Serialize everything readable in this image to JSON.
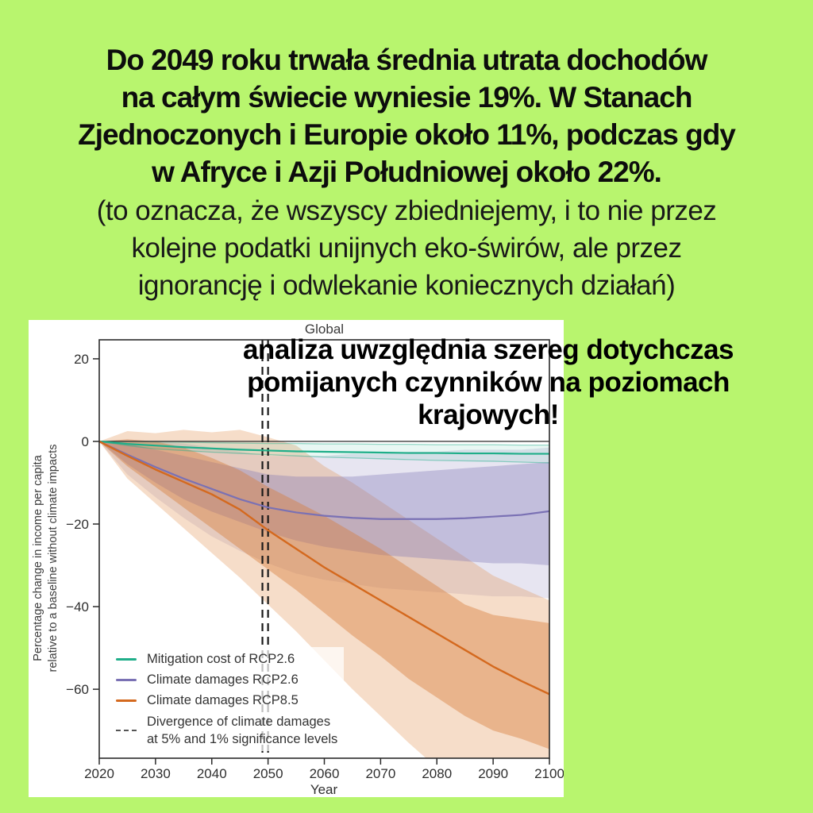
{
  "page": {
    "background_color": "#b8f56e",
    "text_color": "#0d0d0d"
  },
  "headline": {
    "lines": [
      "Do 2049 roku trwała średnia utrata dochodów",
      "na całym świecie wyniesie 19%. W Stanach",
      "Zjednoczonych i Europie około 11%, podczas gdy",
      "w Afryce i Azji Południowej około 22%."
    ]
  },
  "subtext": {
    "lines": [
      "(to oznacza, że wszyscy zbiedniejemy, i to nie przez",
      "kolejne podatki unijnych eko-świrów, ale przez",
      "ignorancję i odwlekanie koniecznych działań)"
    ]
  },
  "overlay": {
    "lines": [
      "analiza uwzględnia szereg dotychczas",
      "pomijanych czynników na poziomach",
      "krajowych!"
    ]
  },
  "chart": {
    "title": "Global",
    "ylabel_line1": "Percentage change in income per capita",
    "ylabel_line2": "relative to a baseline without climate impacts",
    "xlabel": "Year",
    "legend": [
      {
        "label": "Mitigation cost of RCP2.6"
      },
      {
        "label": "Climate damages RCP2.6"
      },
      {
        "label": "Climate damages RCP8.5"
      },
      {
        "label_line1": "Divergence of climate damages",
        "label_line2": "at 5% and 1% significance levels"
      }
    ]
  },
  "chart_data": {
    "type": "line",
    "title": "Global",
    "xlabel": "Year",
    "ylabel": "Percentage change in income per capita relative to a baseline without climate impacts",
    "grid": false,
    "legend_position": "lower left",
    "xlim": [
      2020,
      2100
    ],
    "ylim": [
      -76.7,
      24.6
    ],
    "x_ticks": [
      2020,
      2030,
      2040,
      2050,
      2060,
      2070,
      2080,
      2090,
      2100
    ],
    "y_ticks": [
      20,
      0,
      -20,
      -40,
      -60
    ],
    "x": [
      2020,
      2025,
      2030,
      2035,
      2040,
      2045,
      2050,
      2055,
      2060,
      2065,
      2070,
      2075,
      2080,
      2085,
      2090,
      2095,
      2100
    ],
    "series": [
      {
        "name": "Mitigation cost of RCP2.6",
        "color": "#1fae89",
        "width": 2.2,
        "values": [
          0,
          -0.6,
          -1.0,
          -1.4,
          -1.7,
          -2.0,
          -2.2,
          -2.4,
          -2.5,
          -2.6,
          -2.7,
          -2.8,
          -2.8,
          -2.9,
          -2.9,
          -3.0,
          -3.0
        ]
      },
      {
        "name": "Climate damages RCP2.6",
        "color": "#7a71b4",
        "width": 2.2,
        "values": [
          0,
          -3.2,
          -6.2,
          -9.0,
          -11.5,
          -14.0,
          -16.0,
          -17.2,
          -18.0,
          -18.5,
          -18.8,
          -18.8,
          -18.8,
          -18.6,
          -18.2,
          -17.8,
          -16.9
        ]
      },
      {
        "name": "Climate damages RCP8.5",
        "color": "#d4691e",
        "width": 2.4,
        "values": [
          0,
          -3.5,
          -6.8,
          -9.8,
          -12.8,
          -16.5,
          -21.5,
          -26.0,
          -30.5,
          -34.5,
          -38.5,
          -42.5,
          -46.5,
          -50.5,
          -54.5,
          -58.0,
          -61.2
        ]
      }
    ],
    "bands": [
      {
        "series_key": "rcp26-damages",
        "level": "outer",
        "fill": "rgba(122,113,180,0.18)",
        "upper": [
          0,
          0.5,
          0,
          -0.5,
          -1.5,
          -2.5,
          -3.5,
          -3.5,
          -3.5,
          -3,
          -3,
          -2.5,
          -2.5,
          -2,
          -2,
          -2,
          -1.5
        ],
        "lower": [
          0,
          -8,
          -13.5,
          -18.5,
          -23,
          -26.5,
          -29.5,
          -32,
          -33.5,
          -34.5,
          -35.5,
          -36,
          -36.5,
          -37,
          -37.5,
          -37.5,
          -38
        ]
      },
      {
        "series_key": "rcp85-damages",
        "level": "outer",
        "fill": "rgba(226,142,77,0.30)",
        "upper": [
          0,
          2.5,
          2,
          2.8,
          2.2,
          2.8,
          1,
          -1,
          -6,
          -10,
          -14.5,
          -19,
          -23.5,
          -28,
          -32.5,
          -35.5,
          -38.5
        ],
        "lower": [
          0,
          -9,
          -15,
          -21,
          -27,
          -33,
          -39.5,
          -46,
          -53,
          -60,
          -66.5,
          -73,
          -79,
          -84,
          -88,
          -91,
          -94
        ]
      },
      {
        "series_key": "rcp26-damages",
        "level": "inner",
        "fill": "rgba(122,113,180,0.34)",
        "upper": [
          0,
          -0.5,
          -2,
          -3.5,
          -5,
          -6.5,
          -8,
          -8.5,
          -8.5,
          -8.5,
          -8,
          -7.5,
          -7,
          -6.5,
          -6,
          -5.5,
          -5
        ],
        "lower": [
          0,
          -5.5,
          -10,
          -14,
          -17,
          -19.5,
          -22,
          -24,
          -25.5,
          -26.5,
          -27.5,
          -28,
          -28.5,
          -29,
          -29.5,
          -29.5,
          -30
        ]
      },
      {
        "series_key": "rcp85-damages",
        "level": "inner",
        "fill": "rgba(215,120,50,0.40)",
        "upper": [
          0,
          0.5,
          0,
          -1.5,
          -4,
          -7,
          -11,
          -14.5,
          -18,
          -22,
          -26,
          -30.5,
          -35,
          -39.5,
          -42,
          -43,
          -44
        ],
        "lower": [
          0,
          -6,
          -11,
          -16,
          -21,
          -26,
          -31,
          -36,
          -41.5,
          -47,
          -52,
          -57.5,
          -62,
          -66.5,
          -70,
          -72,
          -74.5
        ]
      },
      {
        "series_key": "rcp26-mitigation",
        "level": "range",
        "fill": "rgba(31,174,137,0.10)",
        "edge_stroke": "rgba(31,174,137,0.45)",
        "upper": [
          0,
          0,
          -0.1,
          -0.2,
          -0.3,
          -0.4,
          -0.5,
          -0.5,
          -0.6,
          -0.6,
          -0.7,
          -0.7,
          -0.8,
          -0.8,
          -0.8,
          -0.9,
          -0.9
        ],
        "lower": [
          0,
          -1,
          -1.8,
          -2.2,
          -2.6,
          -2.9,
          -3.2,
          -3.5,
          -3.8,
          -4,
          -4.2,
          -4.4,
          -4.6,
          -4.7,
          -4.8,
          -5,
          -5.2
        ]
      }
    ],
    "divergence": {
      "years": [
        2049,
        2050
      ],
      "color": "#1a1a1a",
      "label": "Divergence of climate damages at 5% and 1% significance levels"
    }
  }
}
